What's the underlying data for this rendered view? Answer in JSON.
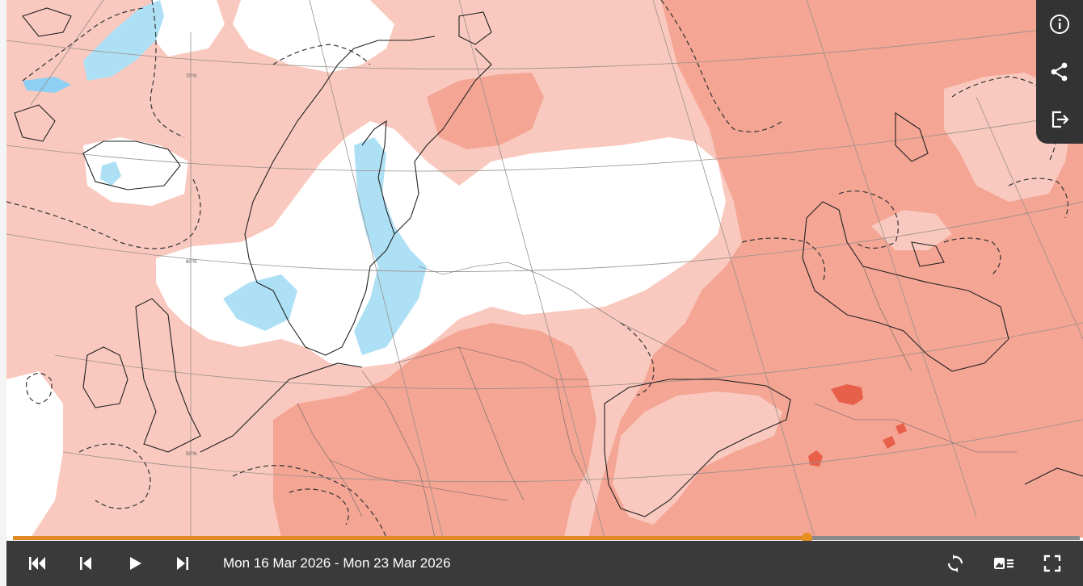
{
  "map": {
    "latitude_labels": [
      "70°N",
      "60°N",
      "50°N"
    ]
  },
  "side_panel": {
    "buttons": [
      {
        "icon": "info-icon"
      },
      {
        "icon": "share-icon"
      },
      {
        "icon": "export-icon"
      }
    ]
  },
  "playback": {
    "date_range": "Mon 16 Mar 2026 - Mon 23 Mar 2026",
    "progress": 0.744
  },
  "colors": {
    "near_normal_white": "#ffffff",
    "warm_light": "#f9c9bf",
    "warm_medium": "#f4a594",
    "warm_strong": "#e8604a",
    "cool_light": "#aee0f5",
    "cool_medium": "#8dd0f3",
    "accent": "#e08a26",
    "toolbar": "#3a3a3a"
  }
}
